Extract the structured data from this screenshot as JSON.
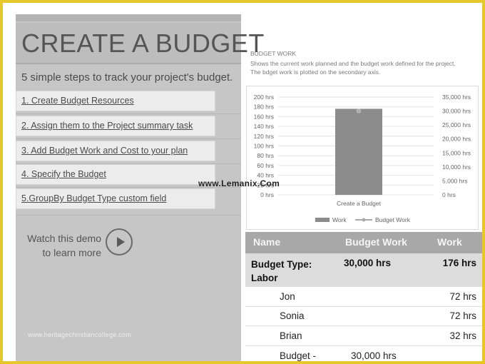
{
  "left": {
    "title": "CREATE A BUDGET",
    "subtitle": "5 simple steps to track your project's budget.",
    "steps": [
      "1. Create Budget Resources",
      "2. Assign them to the Project summary task",
      "3. Add Budget Work and Cost to your plan",
      "4. Specify the Budget",
      "5.GroupBy Budget Type custom field"
    ],
    "demo_line1": "Watch this demo",
    "demo_line2": "to learn more",
    "site": "www.heritagechristiancollege.com"
  },
  "watermark": "www.Lemanix.Com",
  "chart_text": {
    "heading": "BUDGET WORK",
    "description": "Shows the current work planned and the budget work defined for the project.  The bdget work is plotted on the secondary axis."
  },
  "chart_data": {
    "type": "bar",
    "categories": [
      "Create a Budget"
    ],
    "series": [
      {
        "name": "Work",
        "axis": "primary",
        "values": [
          176
        ]
      },
      {
        "name": "Budget Work",
        "axis": "secondary",
        "values": [
          30000
        ]
      }
    ],
    "y_ticks": [
      "200 hrs",
      "180 hrs",
      "160 hrs",
      "140 hrs",
      "120 hrs",
      "100 hrs",
      "80 hrs",
      "60 hrs",
      "40 hrs",
      "20 hrs",
      "0 hrs"
    ],
    "y2_ticks": [
      "35,000 hrs",
      "30,000 hrs",
      "25,000 hrs",
      "20,000 hrs",
      "15,000 hrs",
      "10,000 hrs",
      "5,000 hrs",
      "0 hrs"
    ],
    "ylim": [
      0,
      200
    ],
    "y2lim": [
      0,
      35000
    ],
    "legend": [
      "Work",
      "Budget Work"
    ],
    "legend_position": "bottom",
    "grid": true,
    "colors": {
      "work": "#8c8c8c",
      "budget_work": "#a8a8a8"
    }
  },
  "table": {
    "headers": [
      "Name",
      "Budget Work",
      "Work"
    ],
    "group": {
      "label_line1": "Budget Type:",
      "label_line2": "Labor",
      "budget_work": "30,000 hrs",
      "work": "176 hrs"
    },
    "rows": [
      {
        "name": "Jon",
        "budget_work": "",
        "work": "72 hrs"
      },
      {
        "name": "Sonia",
        "budget_work": "",
        "work": "72 hrs"
      },
      {
        "name": "Brian",
        "budget_work": "",
        "work": "32 hrs"
      },
      {
        "name": "Budget -",
        "budget_work": "30,000 hrs",
        "work": ""
      }
    ]
  }
}
